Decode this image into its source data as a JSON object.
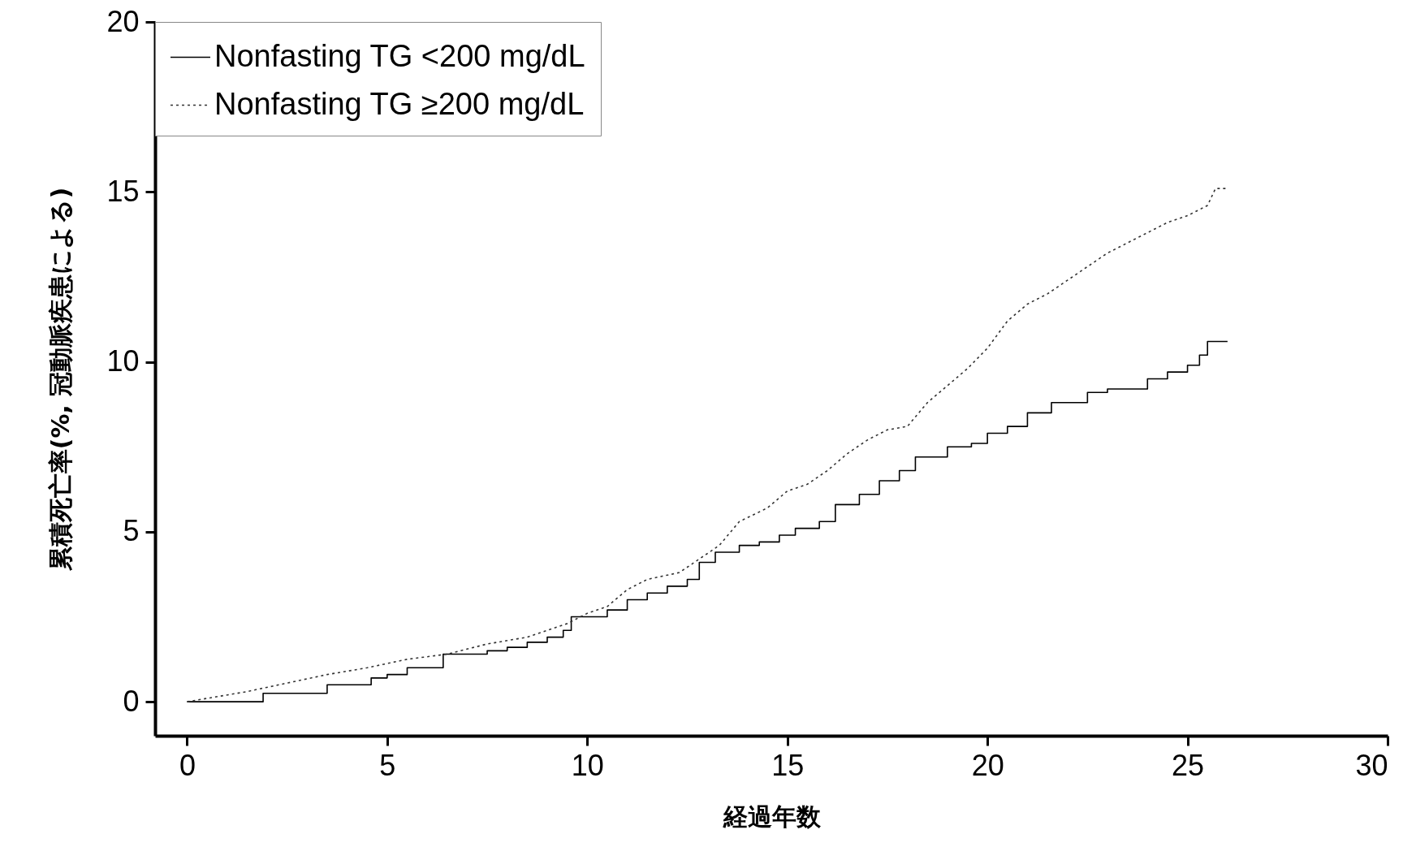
{
  "chart_data": {
    "type": "step",
    "xlabel": "経過年数",
    "ylabel": "累積死亡率(%, 冠動脈疾患による)",
    "xlim": [
      -0.8,
      30
    ],
    "ylim": [
      -1,
      20
    ],
    "xticks": [
      0,
      5,
      10,
      15,
      20,
      25,
      30
    ],
    "yticks": [
      0,
      5,
      10,
      15,
      20
    ],
    "grid": false,
    "legend": "top left",
    "marker": "none",
    "series": [
      {
        "name": "Nonfasting TG <200 mg/dL",
        "color": "#000000",
        "line_style": "solid",
        "x": [
          0,
          1.9,
          3.5,
          4.6,
          5.0,
          5.5,
          6.4,
          7.5,
          8.0,
          8.5,
          9.0,
          9.4,
          9.6,
          10.5,
          11.0,
          11.5,
          12.0,
          12.5,
          12.8,
          13.2,
          13.8,
          14.3,
          14.8,
          15.2,
          15.8,
          16.2,
          16.8,
          17.3,
          17.8,
          18.2,
          19.0,
          19.6,
          20.0,
          20.5,
          21.0,
          21.6,
          22.5,
          23.0,
          24.0,
          24.5,
          25.0,
          25.3,
          25.5,
          26.0
        ],
        "values": [
          0,
          0.25,
          0.5,
          0.7,
          0.8,
          1.0,
          1.4,
          1.5,
          1.6,
          1.75,
          1.9,
          2.1,
          2.5,
          2.7,
          3.0,
          3.2,
          3.4,
          3.6,
          4.1,
          4.4,
          4.6,
          4.7,
          4.9,
          5.1,
          5.3,
          5.8,
          6.1,
          6.5,
          6.8,
          7.2,
          7.5,
          7.6,
          7.9,
          8.1,
          8.5,
          8.8,
          9.1,
          9.2,
          9.5,
          9.7,
          9.9,
          10.2,
          10.6,
          10.6
        ]
      },
      {
        "name": "Nonfasting TG ≥200 mg/dL",
        "type": "line",
        "color": "#333333",
        "line_style": "dotted",
        "x": [
          0,
          0.5,
          1.5,
          2.5,
          3.5,
          4.5,
          5.5,
          6.5,
          7.5,
          8.5,
          9.5,
          10.0,
          10.5,
          11.0,
          11.5,
          12.3,
          12.8,
          13.3,
          13.8,
          14.5,
          15.0,
          15.5,
          16.0,
          16.5,
          17.0,
          17.5,
          18.0,
          18.5,
          19.0,
          19.5,
          20.0,
          20.5,
          21.0,
          21.5,
          22.0,
          22.5,
          23.0,
          23.5,
          24.0,
          24.5,
          25.0,
          25.5,
          25.7,
          26.0
        ],
        "values": [
          0,
          0.1,
          0.3,
          0.55,
          0.8,
          1.0,
          1.25,
          1.4,
          1.7,
          1.9,
          2.3,
          2.6,
          2.8,
          3.3,
          3.6,
          3.8,
          4.2,
          4.6,
          5.3,
          5.7,
          6.2,
          6.4,
          6.8,
          7.3,
          7.7,
          8.0,
          8.1,
          8.8,
          9.3,
          9.8,
          10.4,
          11.2,
          11.7,
          12.0,
          12.4,
          12.8,
          13.2,
          13.5,
          13.8,
          14.1,
          14.3,
          14.6,
          15.1,
          15.1
        ]
      }
    ]
  }
}
